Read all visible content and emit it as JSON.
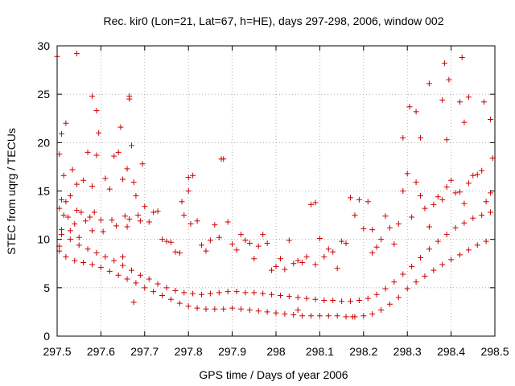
{
  "chart_data": {
    "type": "scatter",
    "title": "Rec. kir0 (Lon=21, Lat=67, h=HE), days 297-298, 2006, window 002",
    "xlabel": "GPS time / Days of year 2006",
    "ylabel": "STEC from uqrg / TECUs",
    "xlim": [
      297.5,
      298.5
    ],
    "ylim": [
      0,
      30
    ],
    "xticks": [
      "297.5",
      "297.6",
      "297.7",
      "297.8",
      "297.9",
      "298",
      "298.1",
      "298.2",
      "298.3",
      "298.4",
      "298.5"
    ],
    "yticks": [
      "0",
      "5",
      "10",
      "15",
      "20",
      "25",
      "30"
    ],
    "grid": true,
    "marker": "plus",
    "color": "#cc0000",
    "series": [
      {
        "x": [
          297.505,
          297.505,
          297.505,
          297.51,
          297.51,
          297.51,
          297.515,
          297.515,
          297.52,
          297.52,
          297.525,
          297.53,
          297.53,
          297.535,
          297.54,
          297.545,
          297.545,
          297.55,
          297.555,
          297.56,
          297.565,
          297.57,
          297.575,
          297.58,
          297.58,
          297.585,
          297.59,
          297.595,
          297.6,
          297.605,
          297.61,
          297.62,
          297.625,
          297.63,
          297.635,
          297.64,
          297.645,
          297.65,
          297.655,
          297.66,
          297.66,
          297.665,
          297.67,
          297.675,
          297.68,
          297.685,
          297.69,
          297.695,
          297.7,
          297.71,
          297.72,
          297.73,
          297.74,
          297.75,
          297.76,
          297.77,
          297.78,
          297.785,
          297.79,
          297.8,
          297.805,
          297.81,
          297.82,
          297.83,
          297.84,
          297.85,
          297.86,
          297.87,
          297.88,
          297.89,
          297.9,
          297.91,
          297.92,
          297.93,
          297.94,
          297.95,
          297.96,
          297.97,
          297.98,
          297.99,
          298.0,
          298.01,
          298.02,
          298.03,
          298.04,
          298.05,
          298.06,
          298.07,
          298.08,
          298.09,
          298.1,
          298.11,
          298.12,
          298.13,
          298.14,
          298.15,
          298.16,
          298.17,
          298.18,
          298.19,
          298.2,
          298.21,
          298.22,
          298.23,
          298.24,
          298.25,
          298.26,
          298.27,
          298.28,
          298.29,
          298.3,
          298.31,
          298.32,
          298.33,
          298.34,
          298.35,
          298.36,
          298.37,
          298.38,
          298.39,
          298.4,
          298.41,
          298.42,
          298.43,
          298.44,
          298.45,
          298.46,
          298.47,
          298.48,
          298.49,
          297.505,
          297.52,
          297.54,
          297.56,
          297.58,
          297.6,
          297.62,
          297.64,
          297.66,
          297.68,
          297.7,
          297.72,
          297.74,
          297.76,
          297.78,
          297.8,
          297.82,
          297.84,
          297.86,
          297.88,
          297.9,
          297.92,
          297.94,
          297.96,
          297.98,
          298.0,
          298.02,
          298.04,
          298.06,
          298.08,
          298.1,
          298.12,
          298.14,
          298.16,
          298.18,
          298.2,
          298.22,
          298.24,
          298.26,
          298.28,
          298.3,
          298.32,
          298.34,
          298.36,
          298.38,
          298.4,
          298.42,
          298.44,
          298.46,
          298.48,
          297.51,
          297.53,
          297.55,
          297.57,
          297.59,
          297.61,
          297.63,
          297.65,
          297.67,
          297.69,
          297.71,
          297.73,
          297.75,
          297.77,
          297.79,
          297.81,
          297.83,
          297.85,
          297.87,
          297.89,
          297.91,
          297.93,
          297.95,
          297.97,
          297.99,
          298.01,
          298.03,
          298.05,
          298.07,
          298.09,
          298.11,
          298.13,
          298.15,
          298.17,
          298.19,
          298.21,
          298.23,
          298.25,
          298.27,
          298.29,
          298.31,
          298.33,
          298.35,
          298.37,
          298.39,
          298.41,
          298.43,
          298.45,
          298.47,
          298.49,
          297.5,
          297.545,
          297.58,
          297.665,
          297.665,
          297.65,
          297.59,
          297.675,
          297.8,
          297.875,
          298.05,
          298.09,
          298.175,
          298.22,
          298.29,
          298.305,
          298.32,
          298.33,
          298.35,
          298.38,
          298.385,
          298.39,
          298.395,
          298.42,
          298.425,
          298.43,
          298.44,
          298.475,
          298.49,
          298.495
        ],
        "y": [
          13.2,
          18.8,
          9.3,
          20.9,
          14.1,
          11.0,
          16.6,
          12.5,
          22.0,
          13.9,
          12.3,
          14.5,
          10.9,
          17.2,
          11.6,
          15.7,
          13.0,
          10.2,
          12.8,
          16.1,
          11.9,
          19.0,
          12.3,
          15.5,
          10.9,
          12.8,
          18.7,
          21.0,
          12.0,
          10.8,
          16.3,
          15.2,
          12.0,
          18.6,
          11.4,
          19.0,
          21.6,
          16.2,
          12.4,
          17.3,
          11.3,
          12.1,
          19.7,
          15.9,
          14.5,
          12.5,
          11.9,
          17.8,
          13.4,
          11.8,
          12.8,
          12.9,
          10.0,
          9.8,
          9.7,
          8.7,
          8.6,
          13.9,
          12.5,
          15.0,
          11.6,
          16.6,
          11.9,
          9.4,
          8.8,
          9.9,
          11.5,
          10.2,
          18.3,
          11.8,
          9.5,
          8.9,
          10.5,
          9.9,
          9.6,
          8.0,
          9.3,
          10.5,
          9.6,
          6.8,
          7.2,
          8.0,
          6.9,
          9.9,
          7.5,
          7.8,
          7.6,
          8.2,
          13.6,
          7.4,
          10.1,
          8.2,
          9.0,
          8.7,
          7.0,
          9.8,
          9.6,
          14.3,
          12.5,
          14.1,
          11.1,
          13.9,
          11.0,
          9.2,
          10.0,
          12.4,
          11.2,
          9.5,
          11.6,
          15.0,
          16.8,
          12.3,
          15.9,
          14.5,
          13.2,
          11.3,
          13.6,
          14.4,
          14.1,
          15.4,
          16.1,
          14.8,
          14.9,
          13.7,
          15.8,
          16.6,
          16.7,
          17.1,
          13.9,
          14.8,
          8.8,
          8.2,
          7.8,
          7.6,
          7.4,
          7.1,
          6.7,
          6.3,
          5.9,
          5.5,
          5.0,
          4.6,
          4.2,
          3.8,
          3.4,
          3.1,
          2.9,
          2.8,
          2.8,
          2.8,
          2.9,
          2.8,
          2.7,
          2.6,
          2.5,
          2.4,
          2.3,
          2.2,
          2.1,
          2.1,
          2.1,
          2.1,
          2.1,
          2.0,
          2.0,
          2.1,
          2.3,
          2.7,
          3.3,
          4.0,
          4.9,
          5.6,
          6.2,
          6.8,
          7.4,
          7.9,
          8.4,
          8.9,
          9.4,
          9.8,
          10.5,
          10.0,
          9.4,
          9.0,
          8.6,
          8.2,
          7.8,
          7.3,
          6.8,
          6.3,
          5.9,
          5.4,
          5.0,
          4.7,
          4.5,
          4.4,
          4.3,
          4.4,
          4.5,
          4.6,
          4.6,
          4.5,
          4.5,
          4.4,
          4.3,
          4.2,
          4.1,
          4.0,
          3.9,
          3.8,
          3.7,
          3.7,
          3.6,
          3.6,
          3.7,
          3.9,
          4.3,
          4.9,
          5.6,
          6.4,
          7.2,
          8.1,
          9.0,
          9.8,
          10.5,
          11.2,
          11.7,
          12.2,
          12.5,
          12.8,
          28.9,
          29.2,
          24.8,
          24.5,
          24.8,
          8.2,
          23.3,
          3.5,
          16.4,
          18.3,
          2.7,
          13.8,
          2.0,
          8.6,
          20.5,
          23.7,
          23.2,
          20.5,
          26.1,
          24.4,
          28.2,
          20.3,
          26.5,
          24.2,
          28.8,
          22.1,
          24.7,
          24.2,
          22.4,
          18.4
        ]
      }
    ]
  }
}
